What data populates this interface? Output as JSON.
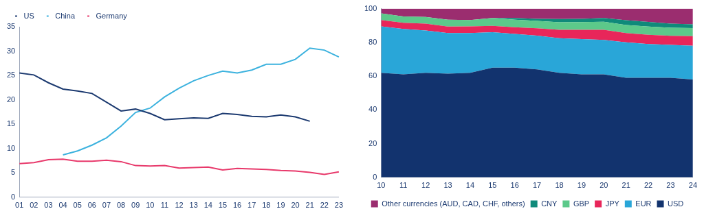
{
  "chart_data": [
    {
      "type": "line",
      "categories": [
        "01",
        "02",
        "03",
        "04",
        "05",
        "06",
        "07",
        "08",
        "09",
        "10",
        "11",
        "12",
        "13",
        "14",
        "15",
        "16",
        "17",
        "18",
        "19",
        "20",
        "21",
        "22",
        "23"
      ],
      "series": [
        {
          "name": "US",
          "color": "#1c3a70",
          "values": [
            25.5,
            25.1,
            23.5,
            22.2,
            21.8,
            21.3,
            19.5,
            17.7,
            18.1,
            17.2,
            15.9,
            16.1,
            16.3,
            16.2,
            17.2,
            17.0,
            16.6,
            16.5,
            16.9,
            16.5,
            15.6,
            null,
            null
          ]
        },
        {
          "name": "China",
          "color": "#3cb2de",
          "values": [
            null,
            null,
            null,
            8.7,
            9.5,
            10.7,
            12.2,
            14.6,
            17.4,
            18.3,
            20.6,
            22.4,
            23.9,
            25.0,
            25.9,
            25.5,
            26.1,
            27.3,
            27.3,
            28.3,
            30.6,
            30.2,
            28.8
          ]
        },
        {
          "name": "Germany",
          "color": "#e8396b",
          "values": [
            6.9,
            7.1,
            7.7,
            7.8,
            7.4,
            7.4,
            7.6,
            7.3,
            6.5,
            6.4,
            6.5,
            6.0,
            6.1,
            6.2,
            5.6,
            5.9,
            5.8,
            5.7,
            5.5,
            5.4,
            5.1,
            4.7,
            5.2
          ]
        }
      ],
      "ylim": [
        0,
        35
      ],
      "yticks": [
        0,
        5,
        10,
        15,
        20,
        25,
        30,
        35
      ],
      "grid": false,
      "legend": "upper left"
    },
    {
      "type": "area",
      "stacked": true,
      "categories": [
        "10",
        "11",
        "12",
        "13",
        "14",
        "15",
        "16",
        "17",
        "18",
        "19",
        "20",
        "21",
        "22",
        "23",
        "24"
      ],
      "series": [
        {
          "name": "USD",
          "color": "#12336e",
          "values": [
            62,
            61,
            62,
            61.5,
            62,
            65,
            65,
            64,
            62,
            61,
            61,
            59,
            59,
            59,
            58
          ]
        },
        {
          "name": "EUR",
          "color": "#29a6d8",
          "values": [
            27.5,
            27,
            25,
            24,
            23.5,
            21,
            20,
            20,
            20.5,
            21,
            20.5,
            21,
            20,
            19.5,
            20
          ]
        },
        {
          "name": "JPY",
          "color": "#e8265a",
          "values": [
            3.7,
            3.6,
            4.1,
            3.9,
            4.0,
            3.8,
            4.0,
            4.4,
            5.0,
            5.4,
            6.0,
            5.5,
            5.5,
            5.4,
            5.7
          ]
        },
        {
          "name": "GBP",
          "color": "#5cc98a",
          "values": [
            4.0,
            3.8,
            4.0,
            4.0,
            3.7,
            4.7,
            4.4,
            4.3,
            4.4,
            4.6,
            4.7,
            4.8,
            4.9,
            4.8,
            4.8
          ]
        },
        {
          "name": "CNY",
          "color": "#0f8a7a",
          "values": [
            0,
            0,
            0,
            0,
            0,
            0,
            1.1,
            1.2,
            1.9,
            1.9,
            2.3,
            2.8,
            2.7,
            2.4,
            2.2
          ]
        },
        {
          "name": "Other currencies (AUD, CAD, CHF, others)",
          "color": "#9b2d6f",
          "values": [
            2.8,
            4.6,
            4.9,
            6.6,
            6.8,
            5.5,
            5.5,
            6.1,
            6.2,
            6.1,
            5.5,
            6.9,
            7.9,
            8.9,
            9.3
          ]
        }
      ],
      "ylim": [
        0,
        100
      ],
      "yticks": [
        0,
        20,
        40,
        60,
        80,
        100
      ],
      "grid": false,
      "legend": "bottom"
    }
  ]
}
